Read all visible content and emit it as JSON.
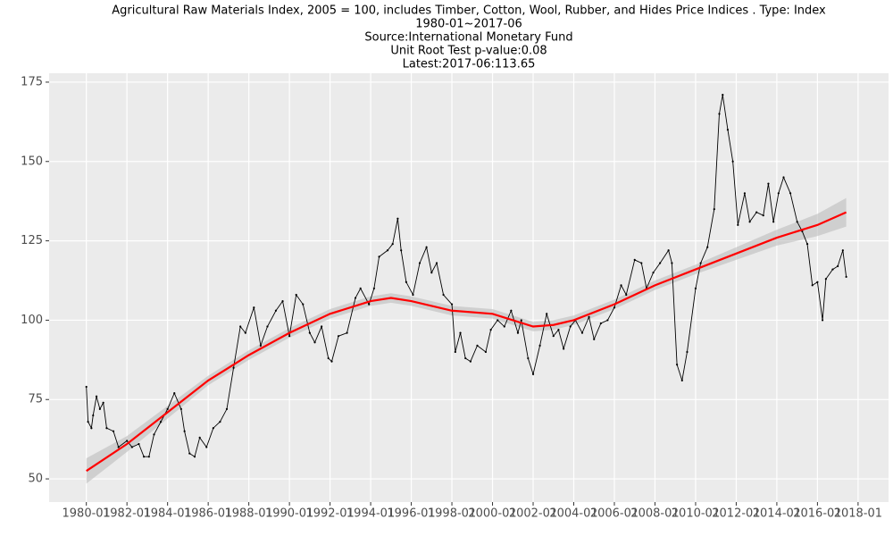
{
  "chart_data": {
    "type": "line",
    "title": "Agricultural Raw Materials Index, 2005 = 100, includes Timber, Cotton, Wool, Rubber, and Hides Price Indices . Type: Index",
    "subtitles": [
      "1980-01~2017-06",
      "Source:International Monetary Fund",
      "Unit Root Test p-value:0.08",
      "Latest:2017-06:113.65"
    ],
    "x": [
      "1980-01",
      "1980-02",
      "1980-04",
      "1980-05",
      "1980-07",
      "1980-09",
      "1980-11",
      "1981-01",
      "1981-05",
      "1981-08",
      "1982-01",
      "1982-04",
      "1982-08",
      "1982-11",
      "1983-02",
      "1983-05",
      "1983-09",
      "1984-01",
      "1984-05",
      "1984-09",
      "1984-11",
      "1985-02",
      "1985-05",
      "1985-08",
      "1985-12",
      "1986-04",
      "1986-08",
      "1986-12",
      "1987-04",
      "1987-08",
      "1987-11",
      "1988-04",
      "1988-08",
      "1988-12",
      "1989-05",
      "1989-09",
      "1990-01",
      "1990-05",
      "1990-09",
      "1991-01",
      "1991-04",
      "1991-08",
      "1991-12",
      "1992-02",
      "1992-06",
      "1992-11",
      "1993-04",
      "1993-07",
      "1993-12",
      "1994-03",
      "1994-06",
      "1994-11",
      "1995-02",
      "1995-05",
      "1995-07",
      "1995-10",
      "1996-02",
      "1996-06",
      "1996-10",
      "1997-01",
      "1997-04",
      "1997-08",
      "1998-01",
      "1998-03",
      "1998-06",
      "1998-09",
      "1998-12",
      "1999-04",
      "1999-09",
      "1999-12",
      "2000-04",
      "2000-08",
      "2000-12",
      "2001-04",
      "2001-06",
      "2001-10",
      "2002-01",
      "2002-05",
      "2002-09",
      "2003-01",
      "2003-04",
      "2003-07",
      "2003-11",
      "2004-02",
      "2004-06",
      "2004-10",
      "2005-01",
      "2005-05",
      "2005-09",
      "2006-01",
      "2006-05",
      "2006-08",
      "2007-01",
      "2007-05",
      "2007-08",
      "2007-12",
      "2008-04",
      "2008-09",
      "2008-11",
      "2009-02",
      "2009-05",
      "2009-08",
      "2010-01",
      "2010-04",
      "2010-08",
      "2010-12",
      "2011-03",
      "2011-05",
      "2011-08",
      "2011-11",
      "2012-02",
      "2012-06",
      "2012-09",
      "2013-01",
      "2013-05",
      "2013-08",
      "2013-11",
      "2014-02",
      "2014-05",
      "2014-09",
      "2015-01",
      "2015-04",
      "2015-07",
      "2015-10",
      "2016-01",
      "2016-04",
      "2016-06",
      "2016-10",
      "2017-01",
      "2017-04",
      "2017-06"
    ],
    "series": [
      {
        "color": "#000000",
        "values": [
          79,
          68,
          66,
          70,
          76,
          72,
          74,
          66,
          65,
          60,
          62,
          60,
          61,
          57,
          57,
          64,
          68,
          72,
          77,
          72,
          65,
          58,
          57,
          63,
          60,
          66,
          68,
          72,
          85,
          98,
          96,
          104,
          92,
          98,
          103,
          106,
          95,
          108,
          105,
          96,
          93,
          98,
          88,
          87,
          95,
          96,
          107,
          110,
          105,
          110,
          120,
          122,
          124,
          132,
          122,
          112,
          108,
          118,
          123,
          115,
          118,
          108,
          105,
          90,
          96,
          88,
          87,
          92,
          90,
          97,
          100,
          98,
          103,
          96,
          100,
          88,
          83,
          92,
          102,
          95,
          97,
          91,
          98,
          100,
          96,
          101,
          94,
          99,
          100,
          104,
          111,
          108,
          119,
          118,
          110,
          115,
          118,
          122,
          118,
          86,
          81,
          90,
          110,
          118,
          123,
          135,
          165,
          171,
          160,
          150,
          130,
          140,
          131,
          134,
          133,
          143,
          131,
          140,
          145,
          140,
          131,
          128,
          124,
          111,
          112,
          100,
          113,
          116,
          117,
          122,
          113.65
        ]
      }
    ],
    "trend": {
      "color": "#ff0000",
      "x": [
        "1980-01",
        "1982-01",
        "1984-01",
        "1986-01",
        "1988-01",
        "1990-01",
        "1992-01",
        "1994-01",
        "1995-01",
        "1996-01",
        "1998-01",
        "2000-01",
        "2002-01",
        "2003-01",
        "2004-01",
        "2006-01",
        "2008-01",
        "2010-01",
        "2012-01",
        "2014-01",
        "2016-01",
        "2017-06"
      ],
      "values": [
        52.5,
        61,
        71,
        81,
        89,
        96,
        102,
        106,
        107,
        106,
        103,
        102,
        98,
        98.5,
        100,
        105,
        111,
        116,
        121,
        126,
        130,
        134
      ],
      "lower": [
        48.5,
        58.5,
        69,
        79.5,
        87.5,
        94.5,
        100.5,
        104.5,
        105.5,
        104.5,
        101.5,
        100.5,
        96.5,
        97,
        98.5,
        103.5,
        109.5,
        114.5,
        119,
        123.5,
        126.5,
        129.5
      ],
      "upper": [
        56.5,
        63.5,
        73,
        82.5,
        90.5,
        97.5,
        103.5,
        107.5,
        108.5,
        107.5,
        104.5,
        103.5,
        99.5,
        100,
        101.5,
        106.5,
        112.5,
        117.5,
        123,
        128.5,
        133.5,
        138.5
      ]
    },
    "xlim": [
      "1978-03",
      "2019-07"
    ],
    "xticks": [
      "1980-01",
      "1982-01",
      "1984-01",
      "1986-01",
      "1988-01",
      "1990-01",
      "1992-01",
      "1994-01",
      "1996-01",
      "1998-01",
      "2000-01",
      "2002-01",
      "2004-01",
      "2006-01",
      "2008-01",
      "2010-01",
      "2012-01",
      "2014-01",
      "2016-01",
      "2018-01"
    ],
    "ylim": [
      42.7,
      177.8
    ],
    "yticks": [
      50,
      75,
      100,
      125,
      150,
      175
    ],
    "grid": true
  }
}
